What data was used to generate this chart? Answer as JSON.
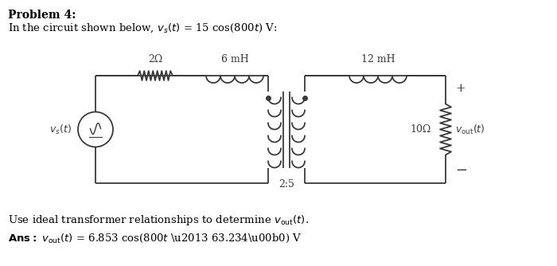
{
  "title_line1": "Problem 4:",
  "title_line2": "In the circuit shown below, v_s(t) = 15 cos(800t) V:",
  "bottom_text1": "Use ideal transformer relationships to determine v_out(t).",
  "bottom_text2_bold": "Ans: ",
  "bottom_text2_italic": "v_out",
  "bottom_text2_rest": "(t) = 6.853 cos(800t – 63.234°) V",
  "background_color": "#ffffff",
  "circuit_color": "#3a3a3a",
  "label_2ohm": "2Ω",
  "label_6mH": "6 mH",
  "label_12mH": "12 mH",
  "label_10ohm": "10Ω",
  "label_ratio": "2:5",
  "label_plus": "+",
  "label_minus": "−"
}
